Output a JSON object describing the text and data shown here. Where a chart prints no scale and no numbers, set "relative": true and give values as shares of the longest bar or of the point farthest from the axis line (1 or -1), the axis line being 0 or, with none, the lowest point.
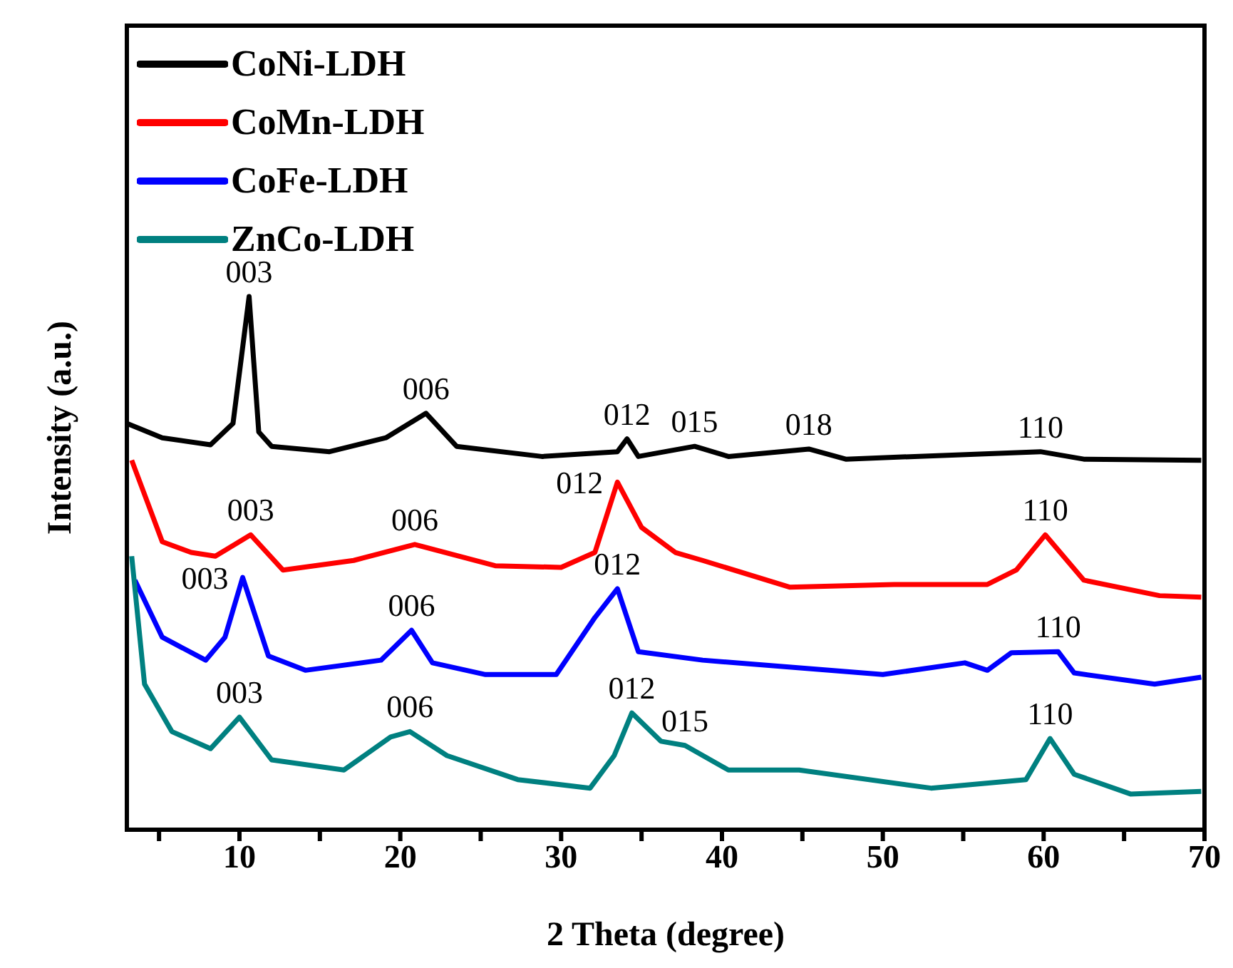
{
  "chart_data": {
    "type": "line",
    "xlabel": "2 Theta (degree)",
    "ylabel": "Intensity (a.u.)",
    "relative": true,
    "legend": "top left",
    "marker": "none",
    "line_style": "solid",
    "grid": false,
    "xlim": [
      3,
      70
    ],
    "xticks": [
      {
        "value": 5,
        "label": null
      },
      10,
      {
        "value": 15,
        "label": null
      },
      20,
      {
        "value": 25,
        "label": null
      },
      30,
      {
        "value": 35,
        "label": null
      },
      40,
      {
        "value": 45,
        "label": null
      },
      50,
      {
        "value": 55,
        "label": null
      },
      60,
      {
        "value": 65,
        "label": null
      },
      70
    ],
    "series": [
      {
        "name": "CoNi-LDH",
        "color": "#000000",
        "x": [
          3,
          5.2,
          8.2,
          9.6,
          10.6,
          11.2,
          12.0,
          15.6,
          19.1,
          21.6,
          23.5,
          28.8,
          33.5,
          34.1,
          34.8,
          38.3,
          40.4,
          45.4,
          47.7,
          59.8,
          62.5,
          69.8
        ],
        "values": [
          0.762,
          0.735,
          0.722,
          0.762,
          1.0,
          0.746,
          0.719,
          0.709,
          0.735,
          0.781,
          0.719,
          0.7,
          0.709,
          0.733,
          0.7,
          0.719,
          0.7,
          0.714,
          0.695,
          0.709,
          0.695,
          0.693
        ]
      },
      {
        "name": "CoMn-LDH",
        "color": "#ff0000",
        "x": [
          3.3,
          5.2,
          7.0,
          8.5,
          10.7,
          12.7,
          17.1,
          20.9,
          25.9,
          30.0,
          32.1,
          33.5,
          35.0,
          37.1,
          38.8,
          44.2,
          50.7,
          56.5,
          58.3,
          60.1,
          62.5,
          67.2,
          69.8
        ],
        "values": [
          0.693,
          0.54,
          0.52,
          0.513,
          0.553,
          0.487,
          0.505,
          0.535,
          0.495,
          0.492,
          0.52,
          0.652,
          0.567,
          0.52,
          0.505,
          0.455,
          0.46,
          0.46,
          0.487,
          0.553,
          0.468,
          0.439,
          0.436
        ]
      },
      {
        "name": "CoFe-LDH",
        "color": "#0000ff",
        "x": [
          3.5,
          5.2,
          7.9,
          9.1,
          10.2,
          11.8,
          14.1,
          18.8,
          20.7,
          22.0,
          25.3,
          29.7,
          32.1,
          33.5,
          34.8,
          38.8,
          50.0,
          55.1,
          56.5,
          58.0,
          60.9,
          61.9,
          66.9,
          69.8
        ],
        "values": [
          0.468,
          0.361,
          0.318,
          0.361,
          0.473,
          0.326,
          0.299,
          0.318,
          0.374,
          0.313,
          0.291,
          0.291,
          0.398,
          0.452,
          0.334,
          0.318,
          0.291,
          0.313,
          0.299,
          0.332,
          0.334,
          0.294,
          0.273,
          0.286
        ]
      },
      {
        "name": "ZnCo-LDH",
        "color": "#008080",
        "x": [
          3.3,
          4.1,
          5.8,
          8.2,
          10.0,
          12.0,
          16.5,
          19.4,
          20.6,
          22.9,
          27.3,
          31.8,
          33.3,
          34.4,
          36.2,
          37.7,
          40.4,
          44.8,
          53.0,
          58.9,
          60.4,
          61.9,
          65.4,
          69.8
        ],
        "values": [
          0.513,
          0.273,
          0.184,
          0.152,
          0.211,
          0.131,
          0.112,
          0.174,
          0.184,
          0.139,
          0.094,
          0.078,
          0.139,
          0.219,
          0.166,
          0.158,
          0.112,
          0.112,
          0.078,
          0.094,
          0.171,
          0.104,
          0.067,
          0.072
        ]
      }
    ],
    "annotations": [
      {
        "text": "003",
        "x": 10.6,
        "y": 1.0
      },
      {
        "text": "006",
        "x": 21.6,
        "y": 0.781
      },
      {
        "text": "012",
        "x": 34.1,
        "y": 0.733
      },
      {
        "text": "015",
        "x": 38.3,
        "y": 0.719
      },
      {
        "text": "018",
        "x": 45.4,
        "y": 0.714
      },
      {
        "text": "110",
        "x": 59.8,
        "y": 0.709
      },
      {
        "text": "003",
        "x": 10.7,
        "y": 0.553
      },
      {
        "text": "006",
        "x": 20.9,
        "y": 0.535
      },
      {
        "text": "012",
        "x": 33.5,
        "y": 0.652
      },
      {
        "text": "110",
        "x": 60.1,
        "y": 0.553
      },
      {
        "text": "003",
        "x": 10.2,
        "y": 0.473
      },
      {
        "text": "006",
        "x": 20.7,
        "y": 0.374
      },
      {
        "text": "012",
        "x": 33.5,
        "y": 0.452
      },
      {
        "text": "110",
        "x": 60.9,
        "y": 0.334
      },
      {
        "text": "003",
        "x": 10.0,
        "y": 0.211
      },
      {
        "text": "006",
        "x": 20.6,
        "y": 0.184
      },
      {
        "text": "012",
        "x": 34.4,
        "y": 0.219
      },
      {
        "text": "015",
        "x": 37.7,
        "y": 0.158
      },
      {
        "text": "110",
        "x": 60.4,
        "y": 0.171
      }
    ]
  }
}
